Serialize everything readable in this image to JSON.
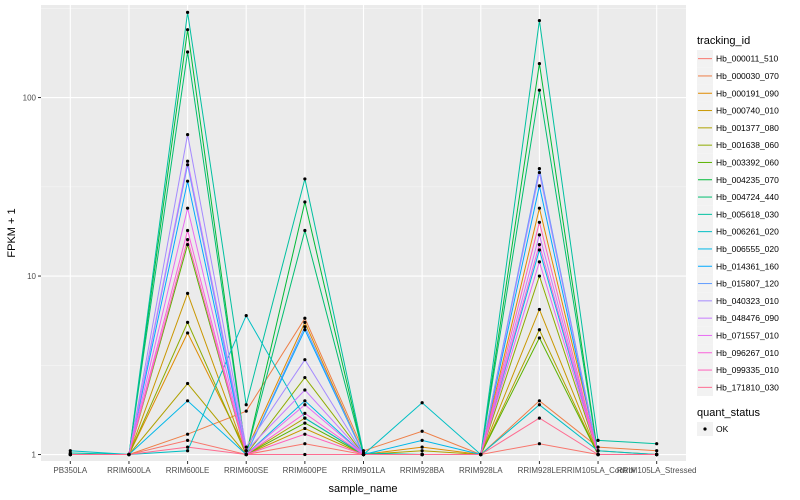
{
  "chart_data": {
    "type": "line",
    "xlabel": "sample_name",
    "ylabel": "FPKM + 1",
    "y_scale": "log10",
    "ylim": [
      0.92,
      330
    ],
    "y_ticks": [
      {
        "value": 1,
        "label": "1"
      },
      {
        "value": 10,
        "label": "10"
      },
      {
        "value": 100,
        "label": "100"
      }
    ],
    "grid": true,
    "legend_position": "right",
    "categories": [
      "PB350LA",
      "RRIM600LA",
      "RRIM600LE",
      "RRIM600SE",
      "RRIM600PE",
      "RRIM901LA",
      "RRIM928BA",
      "RRIM928LA",
      "RRIM928LE",
      "RRIM105LA_Control",
      "RRIM105LA_Stressed"
    ],
    "legend_title": "tracking_id",
    "series": [
      {
        "name": "Hb_000011_510",
        "color": "#F8766D",
        "values": [
          1.0,
          1.0,
          1.2,
          1.0,
          1.15,
          1.0,
          1.0,
          1.0,
          1.15,
          1.0,
          1.0
        ]
      },
      {
        "name": "Hb_000030_070",
        "color": "#EE7F47",
        "values": [
          1.0,
          1.0,
          1.3,
          1.75,
          5.8,
          1.05,
          1.35,
          1.0,
          2.0,
          1.1,
          1.05
        ]
      },
      {
        "name": "Hb_000191_090",
        "color": "#DF8B00",
        "values": [
          1.0,
          1.0,
          4.8,
          1.05,
          5.5,
          1.0,
          1.1,
          1.0,
          24.0,
          1.05,
          1.0
        ]
      },
      {
        "name": "Hb_000740_010",
        "color": "#C99700",
        "values": [
          1.0,
          1.0,
          8.0,
          1.0,
          1.4,
          1.0,
          1.0,
          1.0,
          6.5,
          1.0,
          1.0
        ]
      },
      {
        "name": "Hb_001377_080",
        "color": "#AFA100",
        "values": [
          1.0,
          1.0,
          2.5,
          1.0,
          1.6,
          1.0,
          1.05,
          1.0,
          5.0,
          1.0,
          1.0
        ]
      },
      {
        "name": "Hb_001638_060",
        "color": "#8EAB00",
        "values": [
          1.0,
          1.0,
          5.5,
          1.0,
          2.7,
          1.0,
          1.0,
          1.0,
          10.0,
          1.0,
          1.0
        ]
      },
      {
        "name": "Hb_003392_060",
        "color": "#5AB300",
        "values": [
          1.0,
          1.0,
          15.0,
          1.0,
          1.5,
          1.0,
          1.0,
          1.0,
          4.5,
          1.0,
          1.0
        ]
      },
      {
        "name": "Hb_004235_070",
        "color": "#00BA38",
        "values": [
          1.0,
          1.0,
          240.0,
          1.0,
          26.0,
          1.0,
          1.0,
          1.0,
          155.0,
          1.0,
          1.0
        ]
      },
      {
        "name": "Hb_004724_440",
        "color": "#00BE70",
        "values": [
          1.0,
          1.0,
          180.0,
          1.0,
          18.0,
          1.0,
          1.0,
          1.0,
          110.0,
          1.0,
          1.0
        ]
      },
      {
        "name": "Hb_005618_030",
        "color": "#00C0A0",
        "values": [
          1.02,
          1.0,
          300.0,
          1.9,
          35.0,
          1.02,
          1.0,
          1.0,
          270.0,
          1.2,
          1.15
        ]
      },
      {
        "name": "Hb_006261_020",
        "color": "#00BFC4",
        "values": [
          1.05,
          1.0,
          1.05,
          6.0,
          1.6,
          1.0,
          1.95,
          1.0,
          1.9,
          1.05,
          1.0
        ]
      },
      {
        "name": "Hb_006555_020",
        "color": "#00B7E8",
        "values": [
          1.0,
          1.0,
          2.0,
          1.0,
          2.0,
          1.0,
          1.2,
          1.0,
          14.0,
          1.0,
          1.0
        ]
      },
      {
        "name": "Hb_014361_160",
        "color": "#00A9FF",
        "values": [
          1.0,
          1.0,
          34.0,
          1.0,
          5.0,
          1.0,
          1.0,
          1.0,
          32.0,
          1.0,
          1.0
        ]
      },
      {
        "name": "Hb_015807_120",
        "color": "#619CFF",
        "values": [
          1.0,
          1.0,
          42.0,
          1.0,
          5.2,
          1.0,
          1.0,
          1.0,
          40.0,
          1.0,
          1.0
        ]
      },
      {
        "name": "Hb_040323_010",
        "color": "#A58AFF",
        "values": [
          1.0,
          1.0,
          62.0,
          1.1,
          3.4,
          1.0,
          1.0,
          1.0,
          38.0,
          1.0,
          1.0
        ]
      },
      {
        "name": "Hb_048476_090",
        "color": "#C77CFF",
        "values": [
          1.0,
          1.0,
          44.0,
          1.05,
          2.3,
          1.0,
          1.0,
          1.0,
          17.0,
          1.0,
          1.0
        ]
      },
      {
        "name": "Hb_071557_010",
        "color": "#E76BF3",
        "values": [
          1.0,
          1.0,
          24.0,
          1.0,
          1.9,
          1.0,
          1.0,
          1.0,
          12.0,
          1.0,
          1.0
        ]
      },
      {
        "name": "Hb_096267_010",
        "color": "#FA62DB",
        "values": [
          1.0,
          1.0,
          18.0,
          1.0,
          1.7,
          1.0,
          1.0,
          1.0,
          15.0,
          1.0,
          1.0
        ]
      },
      {
        "name": "Hb_099335_010",
        "color": "#FF62BC",
        "values": [
          1.0,
          1.0,
          16.0,
          1.0,
          1.3,
          1.0,
          1.0,
          1.0,
          20.0,
          1.0,
          1.0
        ]
      },
      {
        "name": "Hb_171810_030",
        "color": "#FF6C91",
        "values": [
          1.0,
          1.0,
          1.1,
          1.0,
          1.0,
          1.0,
          1.0,
          1.0,
          1.6,
          1.0,
          1.0
        ]
      }
    ],
    "shape_legend_title": "quant_status",
    "shape_legend_label": "OK",
    "point_color": "#000000",
    "panel_background": "#EBEBEB"
  }
}
